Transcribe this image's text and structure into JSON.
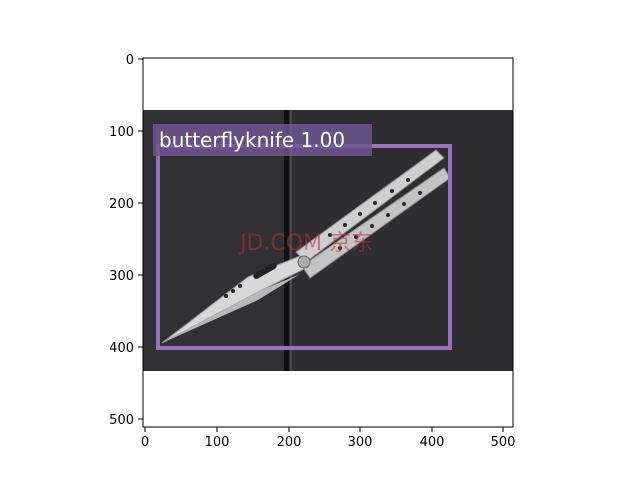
{
  "plot": {
    "x_ticks": [
      "0",
      "100",
      "200",
      "300",
      "400",
      "500"
    ],
    "y_ticks": [
      "0",
      "100",
      "200",
      "300",
      "400",
      "500"
    ]
  },
  "detection": {
    "label": "butterflyknife 1.00",
    "box_color": "#9b72c0",
    "label_bg_color": "#6f5692"
  },
  "photo": {
    "background_color": "#2f2f31",
    "watermark": "JD.COM 京东"
  }
}
